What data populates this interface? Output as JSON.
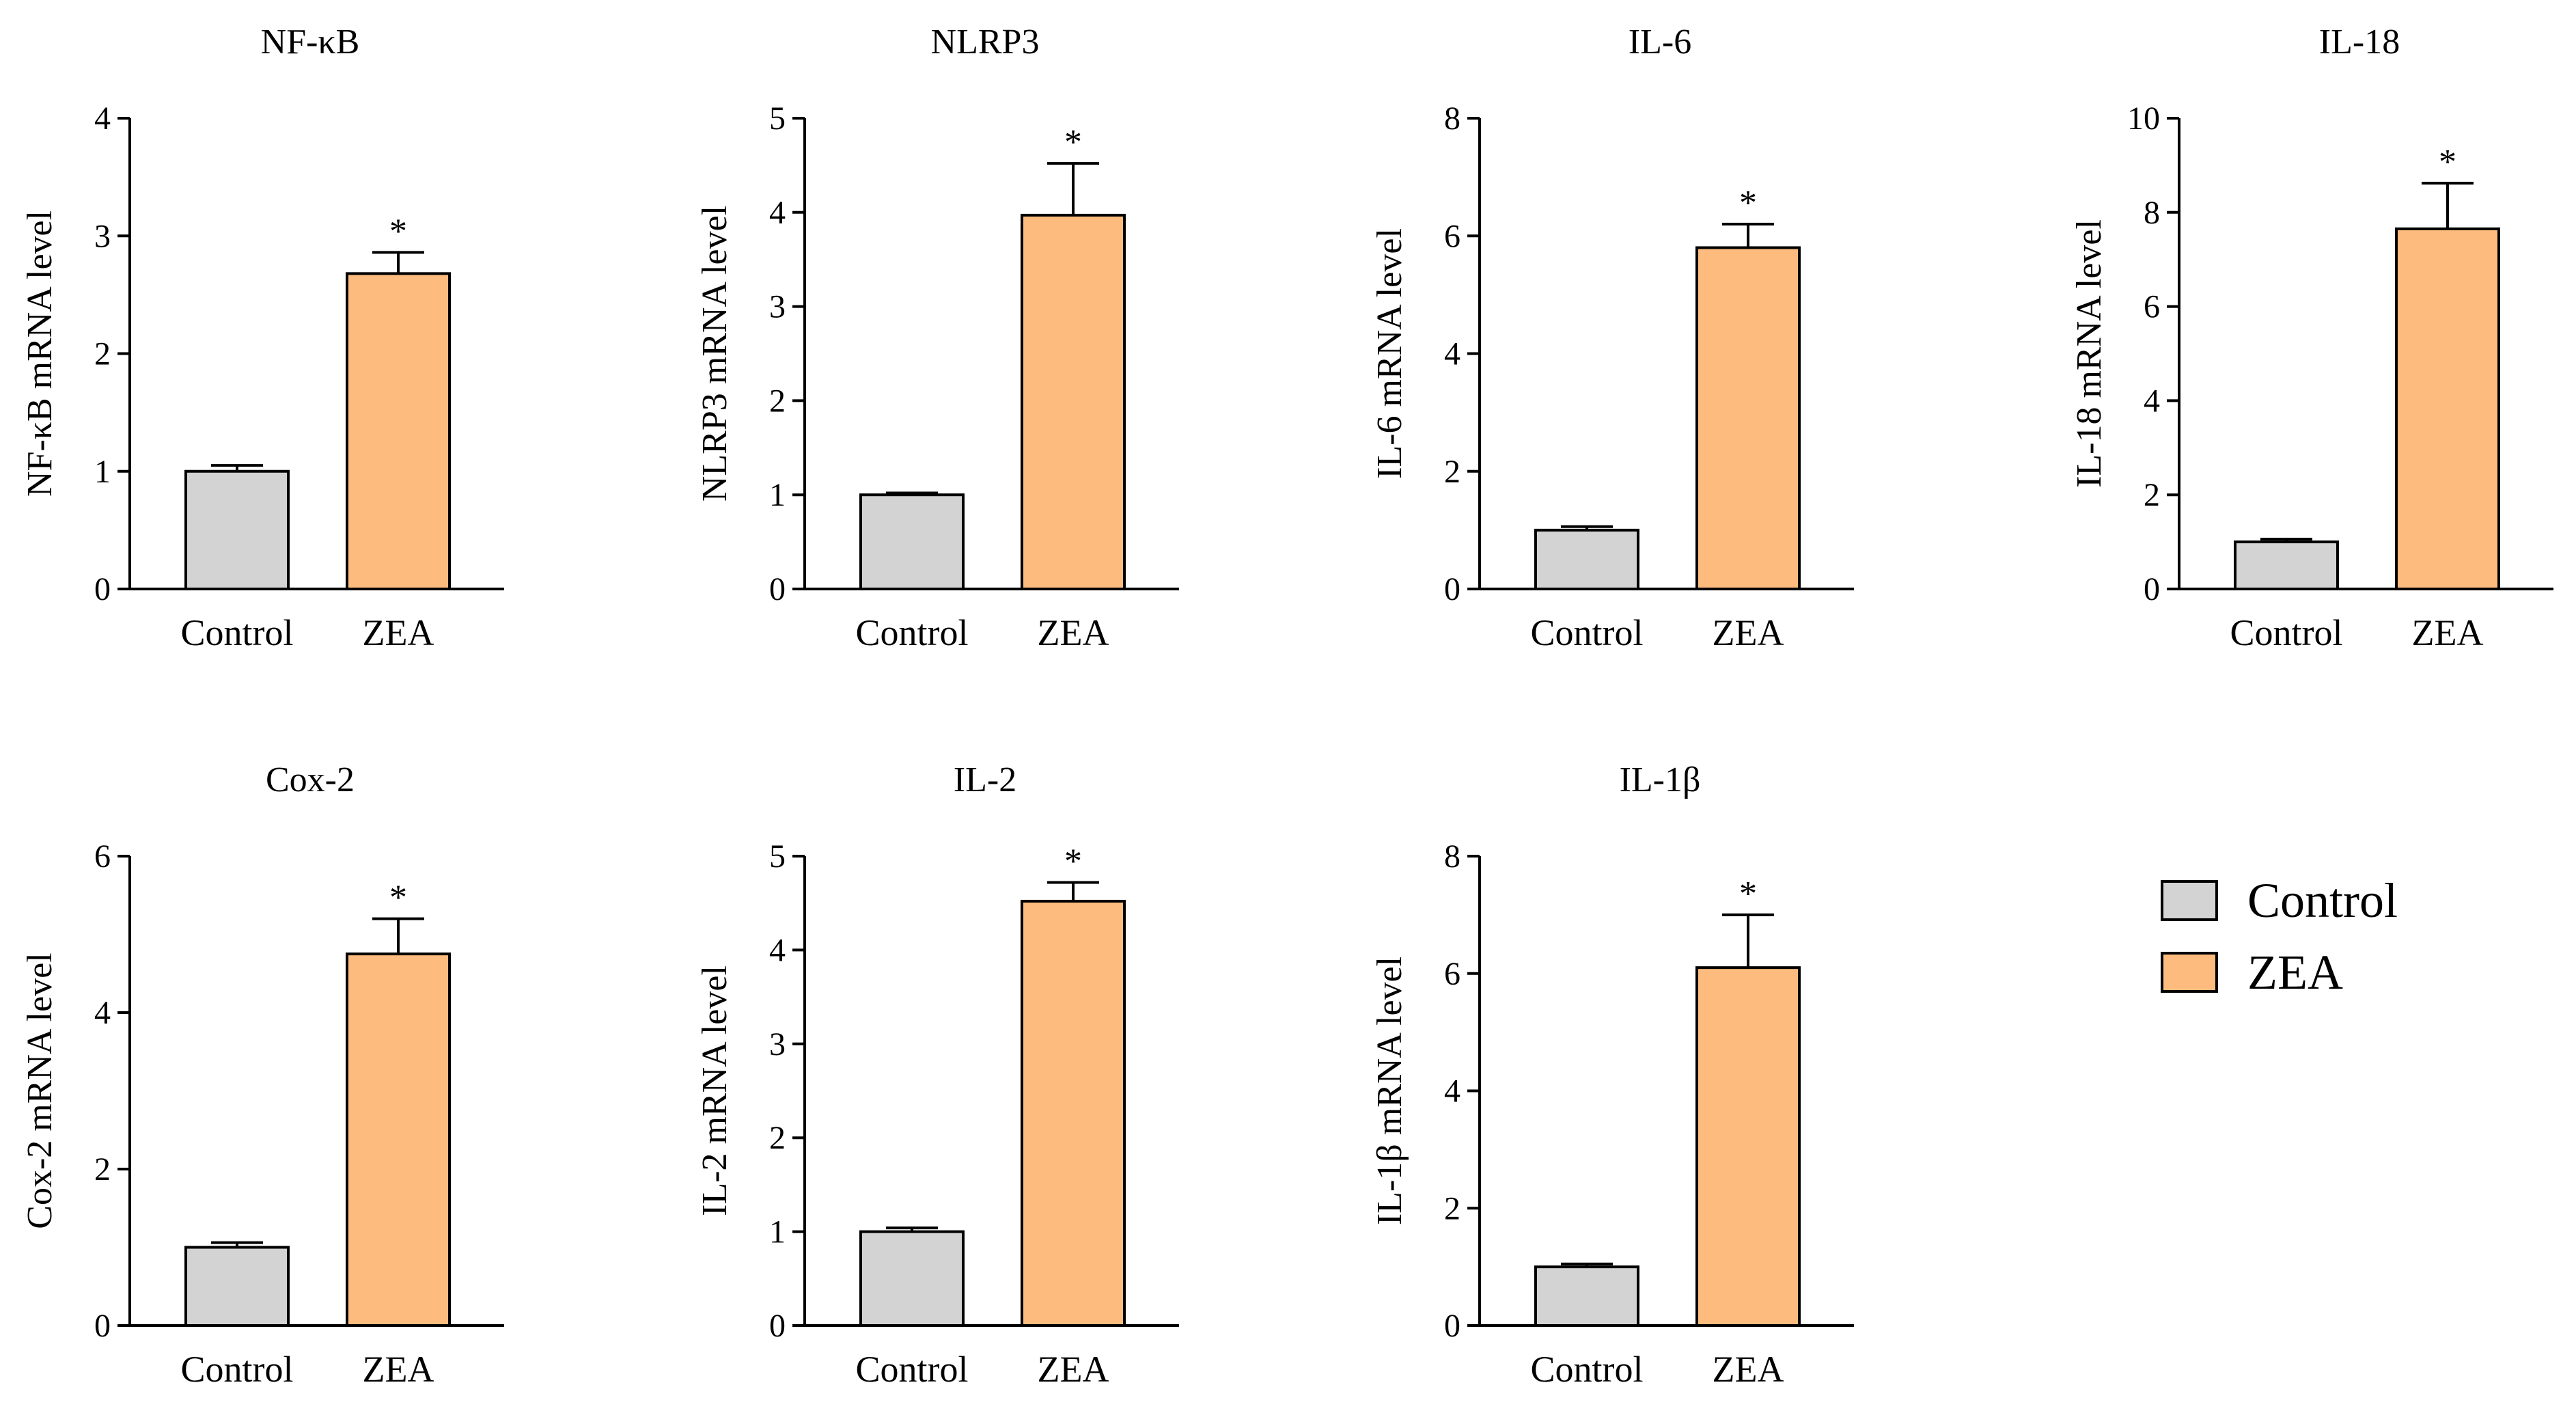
{
  "colors": {
    "control": "#d3d3d3",
    "zea": "#fdbc7d",
    "stroke": "#000000"
  },
  "legend": {
    "items": [
      {
        "label": "Control",
        "color": "#d3d3d3"
      },
      {
        "label": "ZEA",
        "color": "#fdbc7d"
      }
    ]
  },
  "chart_data": [
    {
      "type": "bar",
      "title": "NF-κB",
      "ylabel": "NF-κB mRNA level",
      "categories": [
        "Control",
        "ZEA"
      ],
      "values": [
        1.0,
        2.68
      ],
      "errors": [
        0.05,
        0.18
      ],
      "significance": [
        "",
        "*"
      ],
      "ylim": [
        0,
        4
      ],
      "yticks": [
        "0",
        "1",
        "2",
        "3",
        "4"
      ],
      "ytick_values": [
        0,
        1,
        2,
        3,
        4
      ]
    },
    {
      "type": "bar",
      "title": "NLRP3",
      "ylabel": "NLRP3 mRNA level",
      "categories": [
        "Control",
        "ZEA"
      ],
      "values": [
        1.0,
        3.97
      ],
      "errors": [
        0.02,
        0.55
      ],
      "significance": [
        "",
        "*"
      ],
      "ylim": [
        0,
        5
      ],
      "yticks": [
        "0",
        "1",
        "2",
        "3",
        "4",
        "5"
      ],
      "ytick_values": [
        0,
        1,
        2,
        3,
        4,
        5
      ]
    },
    {
      "type": "bar",
      "title": "IL-6",
      "ylabel": "IL-6 mRNA level",
      "categories": [
        "Control",
        "ZEA"
      ],
      "values": [
        1.0,
        5.8
      ],
      "errors": [
        0.06,
        0.4
      ],
      "significance": [
        "",
        "*"
      ],
      "ylim": [
        0,
        8
      ],
      "yticks": [
        "0",
        "2",
        "4",
        "6",
        "8"
      ],
      "ytick_values": [
        0,
        2,
        4,
        6,
        8
      ]
    },
    {
      "type": "bar",
      "title": "IL-18",
      "ylabel": "IL-18 mRNA level",
      "categories": [
        "Control",
        "ZEA"
      ],
      "values": [
        1.0,
        7.65
      ],
      "errors": [
        0.06,
        0.97
      ],
      "significance": [
        "",
        "*"
      ],
      "ylim": [
        0,
        10
      ],
      "yticks": [
        "0",
        "2",
        "4",
        "6",
        "8",
        "10"
      ],
      "ytick_values": [
        0,
        2,
        4,
        6,
        8,
        10
      ]
    },
    {
      "type": "bar",
      "title": "Cox-2",
      "ylabel": "Cox-2 mRNA level",
      "categories": [
        "Control",
        "ZEA"
      ],
      "values": [
        1.0,
        4.75
      ],
      "errors": [
        0.06,
        0.45
      ],
      "significance": [
        "",
        "*"
      ],
      "ylim": [
        0,
        6
      ],
      "yticks": [
        "0",
        "2",
        "4",
        "6"
      ],
      "ytick_values": [
        0,
        2,
        4,
        6
      ]
    },
    {
      "type": "bar",
      "title": "IL-2",
      "ylabel": "IL-2 mRNA level",
      "categories": [
        "Control",
        "ZEA"
      ],
      "values": [
        1.0,
        4.52
      ],
      "errors": [
        0.04,
        0.2
      ],
      "significance": [
        "",
        "*"
      ],
      "ylim": [
        0,
        5
      ],
      "yticks": [
        "0",
        "1",
        "2",
        "3",
        "4",
        "5"
      ],
      "ytick_values": [
        0,
        1,
        2,
        3,
        4,
        5
      ]
    },
    {
      "type": "bar",
      "title": "IL-1β",
      "ylabel": "IL-1β mRNA level",
      "categories": [
        "Control",
        "ZEA"
      ],
      "values": [
        1.0,
        6.1
      ],
      "errors": [
        0.05,
        0.9
      ],
      "significance": [
        "",
        "*"
      ],
      "ylim": [
        0,
        8
      ],
      "yticks": [
        "0",
        "2",
        "4",
        "6",
        "8"
      ],
      "ytick_values": [
        0,
        2,
        4,
        6,
        8
      ]
    }
  ]
}
